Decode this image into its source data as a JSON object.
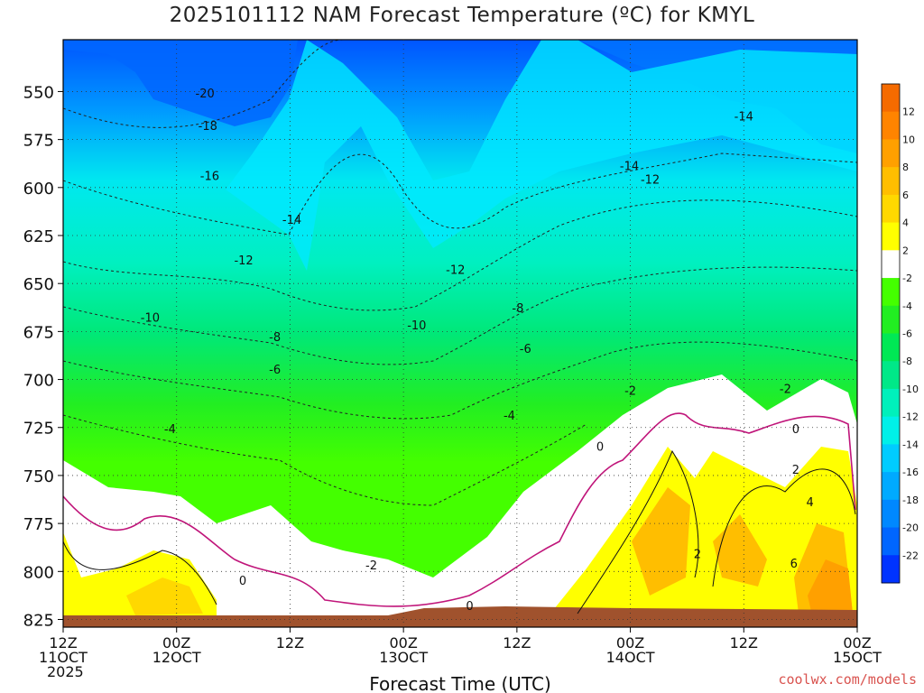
{
  "chart_data": {
    "type": "heatmap",
    "title": "2025101112 NAM Forecast Temperature (ºC) for KMYL",
    "xlabel": "Forecast Time (UTC)",
    "ylabel": "",
    "credit": "coolwx.com/models",
    "y_ticks": [
      "550",
      "575",
      "600",
      "625",
      "650",
      "675",
      "700",
      "725",
      "750",
      "775",
      "800",
      "825"
    ],
    "y_tick_values": [
      550,
      575,
      600,
      625,
      650,
      675,
      700,
      725,
      750,
      775,
      800,
      825
    ],
    "ylim": [
      829,
      523
    ],
    "x_ticks": [
      {
        "hour": 0,
        "label1": "12Z",
        "label2": "11OCT",
        "label3": "2025"
      },
      {
        "hour": 12,
        "label1": "00Z",
        "label2": "12OCT",
        "label3": ""
      },
      {
        "hour": 24,
        "label1": "12Z",
        "label2": "",
        "label3": ""
      },
      {
        "hour": 36,
        "label1": "00Z",
        "label2": "13OCT",
        "label3": ""
      },
      {
        "hour": 48,
        "label1": "12Z",
        "label2": "",
        "label3": ""
      },
      {
        "hour": 60,
        "label1": "00Z",
        "label2": "14OCT",
        "label3": ""
      },
      {
        "hour": 72,
        "label1": "12Z",
        "label2": "",
        "label3": ""
      },
      {
        "hour": 84,
        "label1": "00Z",
        "label2": "15OCT",
        "label3": ""
      }
    ],
    "xlim": [
      0,
      84
    ],
    "colorbar": {
      "labels": [
        "12",
        "10",
        "8",
        "6",
        "4",
        "2",
        "-2",
        "-4",
        "-6",
        "-8",
        "-10",
        "-12",
        "-14",
        "-16",
        "-18",
        "-20",
        "-22"
      ],
      "colors": [
        "#f56b00",
        "#ff8400",
        "#ffa000",
        "#ffbe00",
        "#ffd800",
        "#ffff00",
        "#ffffff",
        "#44ff00",
        "#22ee22",
        "#00e855",
        "#00e888",
        "#00f0bb",
        "#00f0e8",
        "#00ccff",
        "#00aaff",
        "#0088ff",
        "#0066ff",
        "#0033ff"
      ]
    },
    "contour_labels": [
      {
        "text": "-20",
        "hour": 15.0,
        "p": 553
      },
      {
        "text": "-18",
        "hour": 15.3,
        "p": 570
      },
      {
        "text": "-16",
        "hour": 15.5,
        "p": 596
      },
      {
        "text": "-14",
        "hour": 24.2,
        "p": 619
      },
      {
        "text": "-12",
        "hour": 19.1,
        "p": 640
      },
      {
        "text": "-10",
        "hour": 9.2,
        "p": 670
      },
      {
        "text": "-8",
        "hour": 22.4,
        "p": 680
      },
      {
        "text": "-6",
        "hour": 22.4,
        "p": 697
      },
      {
        "text": "-4",
        "hour": 11.3,
        "p": 728
      },
      {
        "text": "0",
        "hour": 19.0,
        "p": 807
      },
      {
        "text": "-2",
        "hour": 32.6,
        "p": 799
      },
      {
        "text": "0",
        "hour": 43.0,
        "p": 820
      },
      {
        "text": "-10",
        "hour": 37.4,
        "p": 674
      },
      {
        "text": "-12",
        "hour": 41.5,
        "p": 645
      },
      {
        "text": "-8",
        "hour": 48.1,
        "p": 665
      },
      {
        "text": "-6",
        "hour": 48.9,
        "p": 686
      },
      {
        "text": "-4",
        "hour": 47.2,
        "p": 721
      },
      {
        "text": "-2",
        "hour": 60.0,
        "p": 708
      },
      {
        "text": "0",
        "hour": 56.8,
        "p": 737
      },
      {
        "text": "-14",
        "hour": 59.9,
        "p": 591
      },
      {
        "text": "-12",
        "hour": 62.1,
        "p": 598
      },
      {
        "text": "-14",
        "hour": 72.0,
        "p": 565
      },
      {
        "text": "2",
        "hour": 67.1,
        "p": 793
      },
      {
        "text": "-2",
        "hour": 76.4,
        "p": 707
      },
      {
        "text": "0",
        "hour": 77.5,
        "p": 728
      },
      {
        "text": "2",
        "hour": 77.5,
        "p": 749
      },
      {
        "text": "4",
        "hour": 79.0,
        "p": 766
      },
      {
        "text": "6",
        "hour": 77.3,
        "p": 798
      }
    ]
  }
}
